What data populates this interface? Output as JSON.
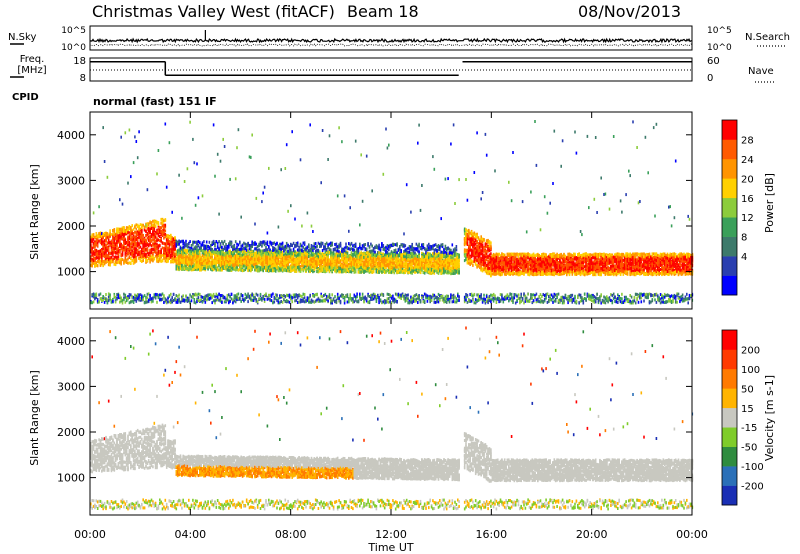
{
  "chart_data": {
    "type": "heatmap",
    "title": "Christmas Valley West (fitACF)",
    "beam_label": "Beam 18",
    "date": "08/Nov/2013",
    "cpid_label": "CPID",
    "cpid_value": "normal (fast) 151 IF",
    "xlabel": "Time UT",
    "x_ticks": [
      "00:00",
      "04:00",
      "08:00",
      "12:00",
      "16:00",
      "20:00",
      "00:00"
    ],
    "x_range_hours": [
      0,
      24
    ],
    "data_gap_hours": [
      14.7,
      14.85
    ],
    "top_panels": {
      "nsky": {
        "label": "N.Sky",
        "ticks": [
          "10^5",
          "10^0"
        ]
      },
      "nsearch": {
        "label": "N.Search",
        "ticks": [
          "10^5",
          "10^0"
        ]
      },
      "freq": {
        "label_line1": "Freq.",
        "label_line2": "[MHz]",
        "ticks": [
          "18",
          "8"
        ],
        "steps": [
          {
            "t0": 0,
            "t1": 3.0,
            "mhz": 16.4
          },
          {
            "t0": 3.0,
            "t1": 14.7,
            "mhz": 10.5
          },
          {
            "t0": 14.85,
            "t1": 24,
            "mhz": 16.4
          }
        ]
      },
      "nave": {
        "label": "Nave",
        "ticks": [
          "60",
          "0"
        ]
      }
    },
    "power_panel": {
      "ylabel": "Slant Range [km]",
      "y_ticks": [
        1000,
        2000,
        3000,
        4000
      ],
      "ylim": [
        180,
        4500
      ],
      "colorbar_label": "Power [dB]",
      "colorbar_ticks": [
        "4",
        "8",
        "12",
        "16",
        "20",
        "24",
        "28"
      ],
      "colors": [
        "#0000ff",
        "#2a3fb0",
        "#3d7a6b",
        "#3aa05a",
        "#8ccc3c",
        "#ffd000",
        "#ff9400",
        "#ff5a00",
        "#ff0000"
      ]
    },
    "velocity_panel": {
      "ylabel": "Slant Range [km]",
      "y_ticks": [
        1000,
        2000,
        3000,
        4000
      ],
      "ylim": [
        180,
        4500
      ],
      "colorbar_label": "Velocity [m s-1]",
      "colorbar_ticks": [
        "200",
        "100",
        "50",
        "15",
        "-15",
        "-50",
        "-100",
        "-200"
      ],
      "colors": [
        "#1a2fb5",
        "#2b70b8",
        "#2f8c3f",
        "#7fcc2a",
        "#c8c8c0",
        "#ffb400",
        "#ff7a00",
        "#ff3a00",
        "#ff0000"
      ]
    }
  }
}
